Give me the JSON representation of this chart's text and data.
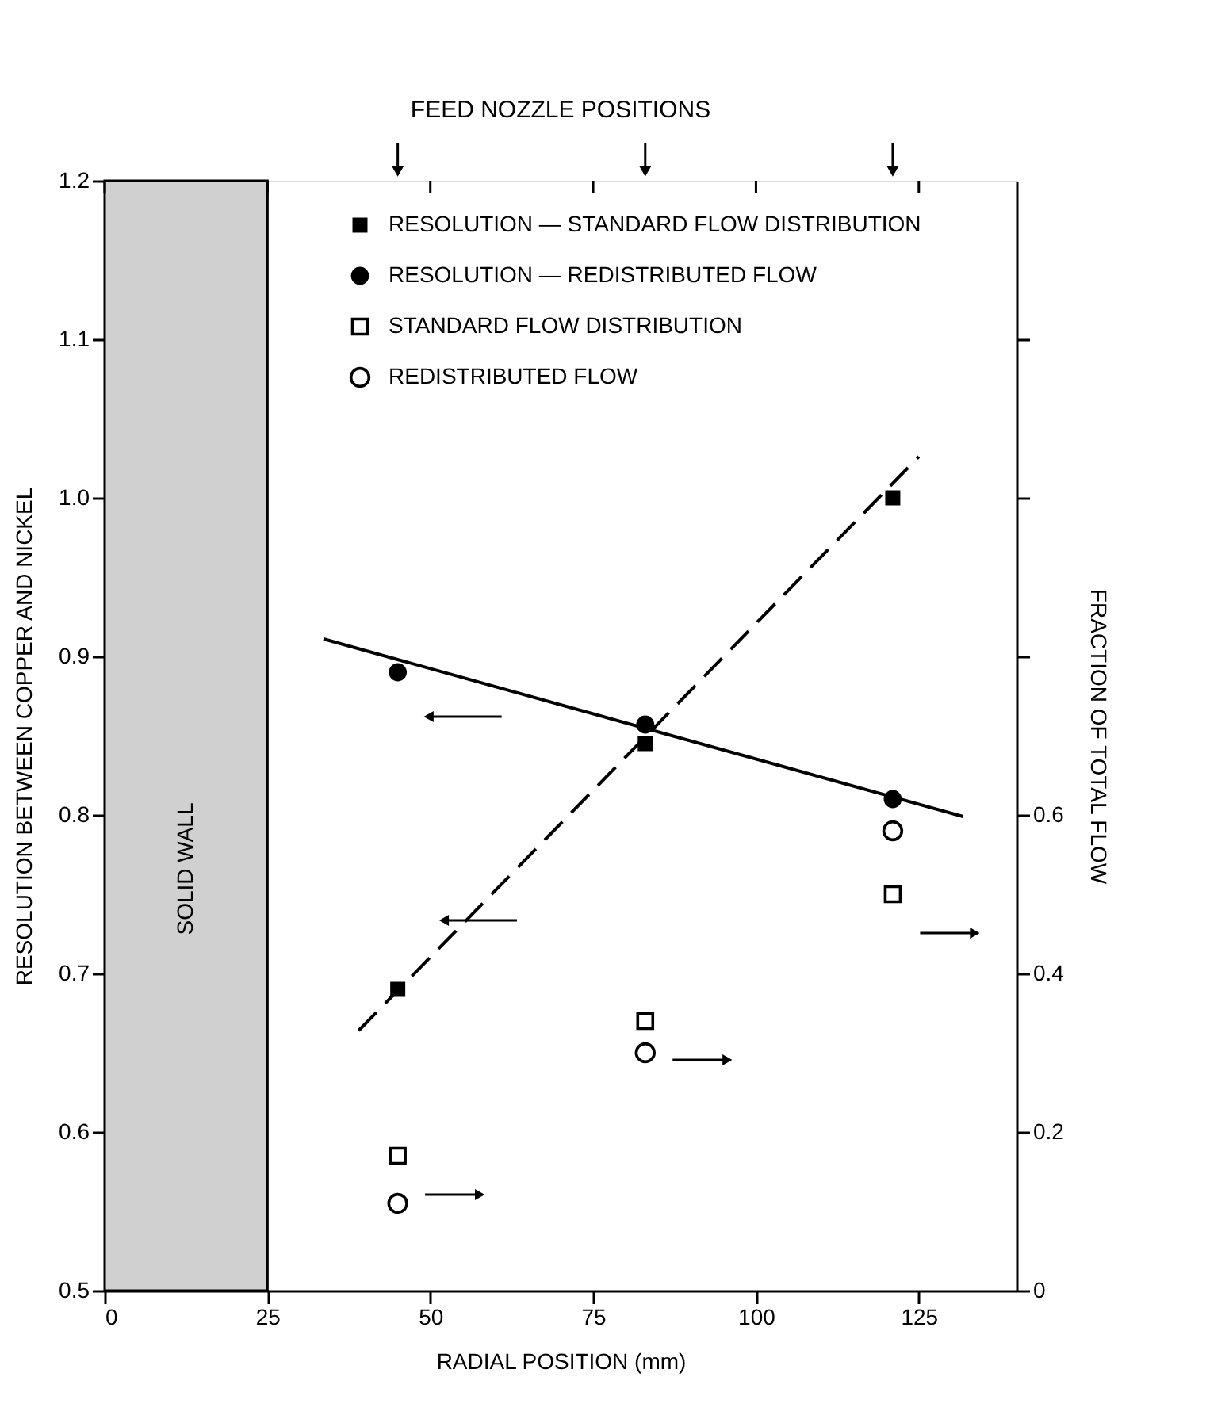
{
  "chart_data": {
    "type": "scatter",
    "xlabel": "RADIAL POSITION (mm)",
    "ylabel": "RESOLUTION BETWEEN COPPER AND NICKEL",
    "y2label": "FRACTION OF TOTAL FLOW",
    "xlim": [
      0,
      140
    ],
    "xticks": [
      0,
      25,
      50,
      75,
      100,
      125
    ],
    "ylim": [
      0.5,
      1.2
    ],
    "yticks": [
      0.5,
      0.6,
      0.7,
      0.8,
      0.9,
      {
        "value": 1,
        "label": "1.0"
      },
      1.1,
      1.2
    ],
    "y2lim": [
      0,
      1.4
    ],
    "y2ticks": [
      0,
      0.2,
      0.4,
      0.6,
      {
        "value": 0.8,
        "label": null
      },
      {
        "value": 1,
        "label": null
      },
      {
        "value": 1.2,
        "label": null
      }
    ],
    "grid": false,
    "legend": "top right",
    "series": [
      {
        "name": "RESOLUTION — STANDARD FLOW DISTRIBUTION",
        "type": "scatter",
        "marker": "square",
        "color": "#000000",
        "x": [
          45,
          83,
          121
        ],
        "values": [
          0.69,
          0.845,
          1.0
        ]
      },
      {
        "name": "RESOLUTION — REDISTRIBUTED FLOW",
        "type": "scatter",
        "marker": "circle",
        "color": "#000000",
        "x": [
          45,
          83,
          121
        ],
        "values": [
          0.89,
          0.857,
          0.81
        ]
      },
      {
        "name": "STANDARD FLOW DISTRIBUTION",
        "type": "scatter",
        "marker": "square",
        "color": "#000000",
        "axis": "y2",
        "x": [
          45,
          83,
          121
        ],
        "values": [
          0.17,
          0.34,
          0.5
        ]
      },
      {
        "name": "REDISTRIBUTED FLOW",
        "type": "scatter",
        "marker": "circle",
        "color": "#000000",
        "axis": "y2",
        "x": [
          45,
          83,
          121
        ],
        "values": [
          0.11,
          0.3,
          0.58
        ]
      },
      {
        "type": "line",
        "line_style": "solid",
        "marker": "none",
        "color": "#000000",
        "x": [
          33.6,
          131.8
        ],
        "values": [
          0.911,
          0.799
        ]
      },
      {
        "type": "line",
        "line_style": "dashed",
        "marker": "none",
        "color": "#000000",
        "x": [
          39,
          125
        ],
        "values": [
          0.664,
          1.026
        ]
      }
    ],
    "bands": [
      {
        "axis": "x",
        "from": 0,
        "to": 25,
        "label": "SOLID WALL",
        "color": "#d0d0d0"
      }
    ],
    "annotations": [
      "FEED NOZZLE POSITIONS"
    ]
  }
}
